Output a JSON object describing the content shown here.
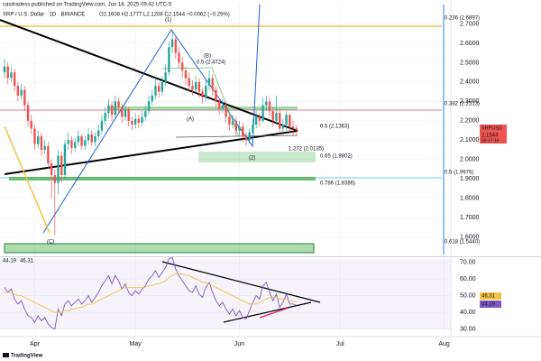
{
  "header": {
    "publisher": "casitradess published on TradingView.com, Jun 18, 2025 09:42 UTC-5",
    "symbol_line": "XRP / U.S. Dollar · 1D · BINANCE",
    "ohlc": "O2.1608 H2.1777 L2.1208 C2.1544 −0.0062 (−0.29%)",
    "symbol": "XRPUSD",
    "countdown": "09:17:16"
  },
  "annotations": [
    "(1)",
    "(B)",
    "(A)",
    "(C)",
    "(2)",
    "0.5 (2.4724)",
    "0.5 (2.1363)",
    "1.272 (2.0135)",
    "0.65 (1.9802)",
    "0.786 (1.8386)",
    "0.236 (2.6897)",
    "0.382 (2.2513)",
    "0.5 (1.9976)",
    "0.618 (1.5440)"
  ],
  "footer": "TradingView",
  "chart_data": [
    {
      "type": "candlestick",
      "up_color": "#26a69a",
      "down_color": "#ef5350",
      "categories": [
        null,
        null,
        null,
        null,
        null,
        null,
        null,
        null,
        null,
        null,
        null,
        null,
        null,
        null,
        null,
        null,
        null,
        null,
        null,
        null,
        null,
        null,
        null,
        null,
        null,
        null,
        null,
        null,
        null,
        null,
        null,
        null,
        null,
        null,
        null,
        null,
        null,
        null,
        null,
        null,
        null,
        null,
        null,
        null,
        null,
        null,
        null,
        null,
        null,
        null,
        null,
        null,
        null,
        null,
        null,
        null,
        null,
        null,
        null,
        null,
        null,
        null,
        null,
        null,
        null,
        null,
        null,
        null,
        null,
        null,
        null,
        null,
        null,
        null,
        null,
        null,
        null,
        null,
        null,
        null,
        null,
        null,
        null,
        null,
        null,
        null,
        null,
        null
      ],
      "open": [
        2.45,
        2.48,
        2.42,
        2.45,
        2.38,
        2.33,
        2.36,
        2.28,
        2.2,
        2.16,
        2.08,
        2.12,
        2.05,
        2.07,
        1.98,
        1.92,
        1.88,
        2.02,
        1.92,
        2.08,
        2.1,
        2.06,
        2.09,
        2.12,
        2.07,
        2.1,
        2.13,
        2.09,
        2.12,
        2.15,
        2.2,
        2.24,
        2.28,
        2.23,
        2.3,
        2.27,
        2.22,
        2.26,
        2.2,
        2.18,
        2.21,
        2.19,
        2.22,
        2.25,
        2.3,
        2.33,
        2.38,
        2.35,
        2.4,
        2.45,
        2.58,
        2.62,
        2.55,
        2.5,
        2.46,
        2.42,
        2.38,
        2.36,
        2.4,
        2.35,
        2.32,
        2.38,
        2.42,
        2.36,
        2.3,
        2.26,
        2.28,
        2.22,
        2.18,
        2.2,
        2.15,
        2.17,
        2.12,
        2.1,
        2.14,
        2.18,
        2.22,
        2.2,
        2.28,
        2.3,
        2.25,
        2.2,
        2.24,
        2.16,
        2.18,
        2.23,
        2.17,
        2.1608
      ],
      "high": [
        2.52,
        2.5,
        2.48,
        2.47,
        2.4,
        2.39,
        2.38,
        2.3,
        2.23,
        2.18,
        2.15,
        2.14,
        2.1,
        2.09,
        2.0,
        1.95,
        2.05,
        2.04,
        2.1,
        2.14,
        2.12,
        2.11,
        2.15,
        2.13,
        2.12,
        2.16,
        2.15,
        2.14,
        2.18,
        2.23,
        2.27,
        2.31,
        2.3,
        2.33,
        2.32,
        2.29,
        2.28,
        2.27,
        2.22,
        2.24,
        2.23,
        2.25,
        2.28,
        2.33,
        2.36,
        2.42,
        2.4,
        2.43,
        2.49,
        2.61,
        2.66,
        2.64,
        2.58,
        2.53,
        2.48,
        2.45,
        2.41,
        2.43,
        2.42,
        2.37,
        2.41,
        2.46,
        2.44,
        2.38,
        2.32,
        2.31,
        2.3,
        2.24,
        2.23,
        2.22,
        2.2,
        2.19,
        2.14,
        2.16,
        2.21,
        2.25,
        2.24,
        2.32,
        2.33,
        2.32,
        2.27,
        2.33,
        2.26,
        2.21,
        2.25,
        2.24,
        2.2,
        2.1777
      ],
      "low": [
        2.42,
        2.39,
        2.4,
        2.35,
        2.3,
        2.31,
        2.25,
        2.17,
        2.13,
        2.05,
        2.06,
        2.02,
        2.03,
        1.95,
        1.8,
        1.61,
        1.82,
        1.88,
        1.9,
        2.05,
        2.03,
        2.04,
        2.07,
        2.05,
        2.05,
        2.08,
        2.07,
        2.07,
        2.1,
        2.13,
        2.18,
        2.21,
        2.2,
        2.21,
        2.24,
        2.19,
        2.2,
        2.17,
        2.15,
        2.16,
        2.16,
        2.17,
        2.2,
        2.23,
        2.28,
        2.31,
        2.32,
        2.33,
        2.38,
        2.43,
        2.55,
        2.52,
        2.47,
        2.42,
        2.38,
        2.35,
        2.33,
        2.34,
        2.32,
        2.29,
        2.3,
        2.36,
        2.33,
        2.27,
        2.23,
        2.24,
        2.19,
        2.15,
        2.16,
        2.12,
        2.12,
        2.09,
        2.07,
        2.08,
        2.12,
        2.16,
        2.17,
        2.19,
        2.25,
        2.22,
        2.17,
        2.18,
        2.13,
        2.14,
        2.15,
        2.14,
        2.12,
        2.1208
      ],
      "close": [
        2.48,
        2.42,
        2.45,
        2.38,
        2.33,
        2.36,
        2.28,
        2.2,
        2.16,
        2.08,
        2.12,
        2.05,
        2.07,
        1.98,
        1.92,
        1.88,
        2.02,
        1.92,
        2.08,
        2.1,
        2.06,
        2.09,
        2.12,
        2.07,
        2.1,
        2.13,
        2.09,
        2.12,
        2.15,
        2.2,
        2.24,
        2.28,
        2.23,
        2.3,
        2.27,
        2.22,
        2.26,
        2.2,
        2.18,
        2.21,
        2.19,
        2.22,
        2.25,
        2.3,
        2.33,
        2.38,
        2.35,
        2.4,
        2.45,
        2.58,
        2.62,
        2.55,
        2.5,
        2.46,
        2.42,
        2.38,
        2.36,
        2.4,
        2.35,
        2.32,
        2.38,
        2.42,
        2.36,
        2.3,
        2.26,
        2.28,
        2.22,
        2.18,
        2.2,
        2.15,
        2.17,
        2.12,
        2.1,
        2.14,
        2.18,
        2.22,
        2.2,
        2.28,
        2.3,
        2.25,
        2.2,
        2.24,
        2.16,
        2.18,
        2.23,
        2.17,
        2.1608,
        2.1544
      ],
      "xlim": [
        -1.34,
        133
      ],
      "ylim": [
        1.51,
        2.8
      ],
      "yticks": [
        {
          "value": 1.6,
          "label": "1.6000"
        },
        {
          "value": 1.7,
          "label": "1.7000"
        },
        {
          "value": 1.8,
          "label": "1.8000"
        },
        {
          "value": 1.9,
          "label": "1.9000"
        },
        {
          "value": 2.0,
          "label": "2.0000"
        },
        {
          "value": 2.1,
          "label": "2.1000"
        },
        {
          "value": 2.2,
          "label": "2.2000"
        },
        {
          "value": 2.3,
          "label": "2.3000"
        },
        {
          "value": 2.4,
          "label": "2.4000"
        },
        {
          "value": 2.5,
          "label": "2.5000"
        },
        {
          "value": 2.6,
          "label": "2.6000"
        },
        {
          "value": 2.7,
          "label": "2.7000"
        }
      ]
    },
    {
      "type": "line",
      "series": [
        {
          "name": "RSI",
          "color": "#7e57c2",
          "values": [
            55,
            52,
            54,
            48,
            45,
            47,
            42,
            38,
            37,
            34,
            38,
            35,
            37,
            33,
            31,
            30,
            42,
            38,
            45,
            47,
            44,
            46,
            48,
            45,
            47,
            50,
            46,
            49,
            52,
            56,
            59,
            62,
            57,
            62,
            59,
            54,
            57,
            52,
            50,
            53,
            51,
            54,
            56,
            60,
            62,
            65,
            61,
            64,
            67,
            72,
            73,
            66,
            62,
            59,
            56,
            53,
            52,
            56,
            51,
            49,
            55,
            58,
            52,
            47,
            44,
            46,
            42,
            39,
            42,
            38,
            41,
            37,
            36,
            41,
            46,
            50,
            48,
            56,
            58,
            52,
            47,
            51,
            43,
            46,
            51,
            45,
            45,
            44.19
          ]
        },
        {
          "name": "RSI-based MA",
          "color": "#f5c242",
          "values": [
            52,
            52,
            52,
            51,
            50,
            50,
            49,
            48,
            47,
            46,
            45,
            44,
            43,
            42,
            41,
            40,
            40,
            40,
            41,
            41,
            42,
            42,
            43,
            43,
            44,
            45,
            45,
            46,
            47,
            48,
            49,
            50,
            51,
            52,
            53,
            54,
            55,
            55,
            55,
            55,
            55,
            55,
            55,
            56,
            56,
            57,
            57,
            58,
            59,
            61,
            62,
            63,
            63,
            63,
            62,
            62,
            61,
            60,
            59,
            58,
            58,
            57,
            56,
            55,
            54,
            53,
            52,
            51,
            50,
            49,
            48,
            47,
            46,
            45,
            45,
            45,
            46,
            47,
            48,
            49,
            49,
            49,
            48,
            48,
            48,
            47,
            47,
            46.31
          ]
        }
      ],
      "xlim": [
        -1.34,
        133
      ],
      "xticks": [
        {
          "value": 9,
          "label": "Apr"
        },
        {
          "value": 39,
          "label": "May"
        },
        {
          "value": 70,
          "label": "Jun"
        },
        {
          "value": 100,
          "label": "Jul"
        },
        {
          "value": 131,
          "label": "Aug"
        }
      ],
      "ylim": [
        26,
        72
      ],
      "yticks": [
        {
          "value": 30,
          "label": "30.00"
        },
        {
          "value": 40,
          "label": "40.00"
        },
        {
          "value": 50,
          "label": "50.00"
        },
        {
          "value": 60,
          "label": "60.00"
        },
        {
          "value": 70,
          "label": "70.00"
        }
      ]
    }
  ]
}
